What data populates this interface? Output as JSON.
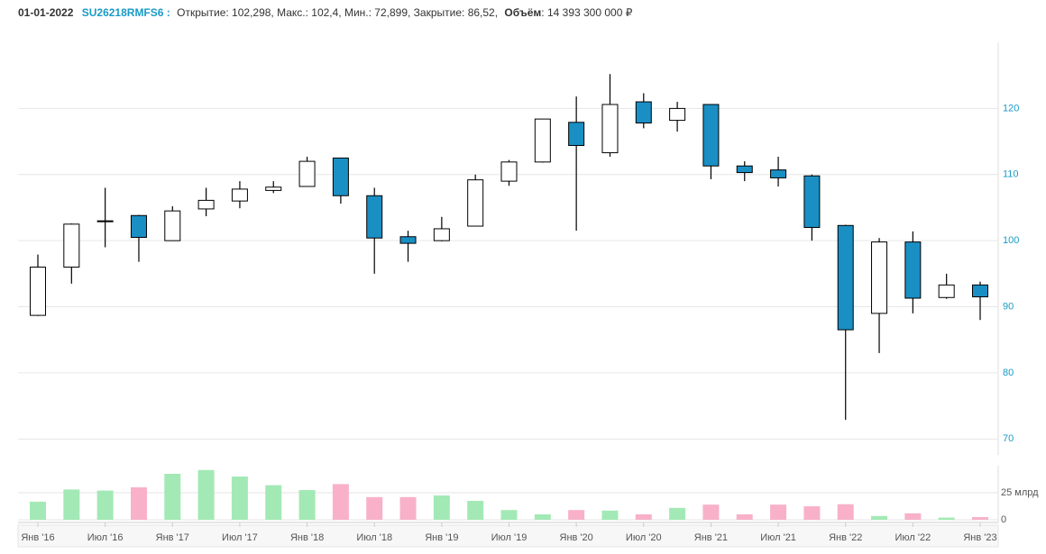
{
  "header": {
    "date": "01-01-2022",
    "ticker": "SU26218RMFS6 :",
    "ohlc": "Открытие: 102,298, Макс.: 102,4, Мин.: 72,899, Закрытие: 86,52,",
    "volume_label": "Объём",
    "volume_value": ": 14 393 300 000 ₽"
  },
  "chart_data": {
    "type": "candlestick",
    "categories": [
      "Янв '16",
      null,
      "Июл '16",
      null,
      "Янв '17",
      null,
      "Июл '17",
      null,
      "Янв '18",
      null,
      "Июл '18",
      null,
      "Янв '19",
      null,
      "Июл '19",
      null,
      "Янв '20",
      null,
      "Июл '20",
      null,
      "Янв '21",
      null,
      "Июл '21",
      null,
      "Янв '22",
      null,
      "Июл '22",
      null,
      "Янв '23"
    ],
    "open": [
      88.7,
      96,
      102.9,
      103.8,
      100,
      104.8,
      106,
      107.6,
      108.2,
      112.5,
      106.8,
      100.6,
      100,
      102.2,
      109,
      111.9,
      117.9,
      113.3,
      121,
      118.2,
      120.6,
      111.3,
      110.7,
      109.8,
      102.298,
      89,
      99.8,
      91.4,
      93.3
    ],
    "high": [
      97.9,
      102.6,
      108,
      103.9,
      105.2,
      108,
      109,
      109,
      112.7,
      112.5,
      108,
      101.5,
      103.6,
      110,
      112.2,
      118.4,
      121.8,
      125.2,
      122.3,
      121,
      120.6,
      112,
      112.7,
      110,
      102.4,
      100.4,
      101.4,
      95,
      93.8
    ],
    "low": [
      88.6,
      93.5,
      99,
      96.8,
      100,
      103.7,
      104.9,
      107.2,
      108.2,
      105.6,
      95,
      96.8,
      99.9,
      102.2,
      108.3,
      111.8,
      101.5,
      112.7,
      117,
      116.5,
      109.3,
      109,
      108.2,
      100,
      72.899,
      83,
      89,
      91.2,
      88
    ],
    "close": [
      96,
      102.5,
      103,
      100.5,
      104.5,
      106.1,
      107.8,
      108.1,
      112,
      106.8,
      100.4,
      99.6,
      101.8,
      109.2,
      111.9,
      118.4,
      114.4,
      120.6,
      117.8,
      120,
      111.3,
      110.3,
      109.5,
      102,
      86.52,
      99.8,
      91.3,
      93.3,
      91.5
    ],
    "volume": [
      16.7,
      28,
      27,
      30,
      42.5,
      46,
      40,
      32,
      27.5,
      33,
      21,
      21,
      22.5,
      17.5,
      9,
      5,
      9,
      8.5,
      5,
      11,
      14,
      5,
      14,
      12.5,
      14.3933,
      3.5,
      6,
      2,
      2.5
    ],
    "up_color": "#ffffff",
    "down_color": "#1a8fc4",
    "volume_up_color": "#a3e9b5",
    "volume_down_color": "#f8b1c9",
    "ylim": [
      68,
      130
    ],
    "yticks": [
      70,
      80,
      90,
      100,
      110,
      120
    ],
    "y2lim": [
      0,
      50
    ],
    "y2ticks": [
      0,
      {
        "value": 25,
        "label": "25 млрд"
      }
    ],
    "grid": true
  }
}
